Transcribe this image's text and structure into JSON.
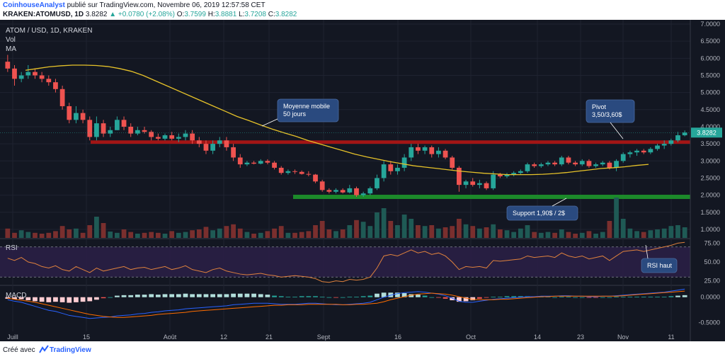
{
  "header": {
    "author": "CoinhouseAnalyst",
    "published": "publié sur TradingView.com, Novembre 06, 2019 12:57:58 CET",
    "symbol": "KRAKEN:ATOMUSD, 1D",
    "last": "3.8282",
    "change": "▲ +0.0780 (+2.08%)",
    "o_label": "O:",
    "o_val": "3.7599",
    "h_label": "H:",
    "h_val": "3.8881",
    "l_label": "L:",
    "l_val": "3.7208",
    "c_label": "C:",
    "c_val": "3.8282"
  },
  "legend": {
    "title": "ATOM / USD, 1D, KRAKEN",
    "vol": "Vol",
    "ma": "MA"
  },
  "callouts": {
    "ma": [
      "Moyenne mobile",
      "50 jours"
    ],
    "pivot": [
      "Pivot",
      "3,50/3,60$"
    ],
    "support": "Support 1,90$ / 2$",
    "rsi": "RSI haut"
  },
  "panes": {
    "rsi": "RSI",
    "macd": "MACD"
  },
  "price_tag": "3.8282",
  "footer": {
    "created": "Créé avec",
    "brand": "TradingView"
  },
  "colors": {
    "up": "#26a69a",
    "down": "#ef5350",
    "ma": "#e6c229",
    "bg": "#131722",
    "resistance": "#a31515",
    "support": "#1c8a2a",
    "rsi_line": "#e0823d",
    "callout": "#2a4a7f"
  },
  "chart_data": {
    "type": "candlestick",
    "x_ticks": [
      "Juill",
      "15",
      "Août",
      "12",
      "21",
      "Sept",
      "16",
      "Oct",
      "14",
      "23",
      "Nov",
      "11"
    ],
    "price_ticks": [
      "7.0000",
      "6.5000",
      "6.0000",
      "5.5000",
      "5.0000",
      "4.5000",
      "4.0000",
      "3.5000",
      "3.0000",
      "2.5000",
      "2.0000",
      "1.5000",
      "1.0000"
    ],
    "rsi_ticks": [
      "75.00",
      "50.00",
      "25.00"
    ],
    "macd_ticks": [
      "0.0000",
      "-0.5000"
    ],
    "price_ylim": [
      0.75,
      7.0
    ],
    "rsi_ylim": [
      20,
      80
    ],
    "macd_ylim": [
      -0.62,
      0.22
    ],
    "resistance_zone": [
      3.5,
      3.6
    ],
    "support_level": 1.95,
    "rsi_levels": [
      70,
      30
    ],
    "candles": [
      [
        5.9,
        6.1,
        5.6,
        5.7
      ],
      [
        5.7,
        5.8,
        5.2,
        5.4
      ],
      [
        5.4,
        5.6,
        5.3,
        5.5
      ],
      [
        5.5,
        5.8,
        5.4,
        5.6
      ],
      [
        5.6,
        5.7,
        5.4,
        5.5
      ],
      [
        5.5,
        5.6,
        5.3,
        5.4
      ],
      [
        5.4,
        5.5,
        5.2,
        5.3
      ],
      [
        5.3,
        5.4,
        5.0,
        5.1
      ],
      [
        5.1,
        5.2,
        4.5,
        4.6
      ],
      [
        4.6,
        4.7,
        4.1,
        4.2
      ],
      [
        4.2,
        4.6,
        4.1,
        4.4
      ],
      [
        4.4,
        4.5,
        4.1,
        4.2
      ],
      [
        4.2,
        4.3,
        3.6,
        3.7
      ],
      [
        3.7,
        4.3,
        3.6,
        4.1
      ],
      [
        4.1,
        4.2,
        3.7,
        3.8
      ],
      [
        3.8,
        4.0,
        3.7,
        3.9
      ],
      [
        3.9,
        4.3,
        3.9,
        4.2
      ],
      [
        4.2,
        4.3,
        3.9,
        4.0
      ],
      [
        4.0,
        4.1,
        3.7,
        3.8
      ],
      [
        3.8,
        4.0,
        3.75,
        3.9
      ],
      [
        3.9,
        4.0,
        3.8,
        3.85
      ],
      [
        3.85,
        3.9,
        3.6,
        3.7
      ],
      [
        3.7,
        3.8,
        3.6,
        3.65
      ],
      [
        3.65,
        3.8,
        3.6,
        3.75
      ],
      [
        3.75,
        3.85,
        3.6,
        3.65
      ],
      [
        3.65,
        3.8,
        3.55,
        3.7
      ],
      [
        3.7,
        3.9,
        3.6,
        3.8
      ],
      [
        3.8,
        3.9,
        3.5,
        3.6
      ],
      [
        3.6,
        3.7,
        3.4,
        3.5
      ],
      [
        3.5,
        3.6,
        3.2,
        3.3
      ],
      [
        3.3,
        3.6,
        3.2,
        3.5
      ],
      [
        3.5,
        3.7,
        3.4,
        3.6
      ],
      [
        3.6,
        3.7,
        3.3,
        3.4
      ],
      [
        3.4,
        3.5,
        3.0,
        3.1
      ],
      [
        3.1,
        3.2,
        2.8,
        2.9
      ],
      [
        2.9,
        3.0,
        2.85,
        2.95
      ],
      [
        2.95,
        3.0,
        2.9,
        2.92
      ],
      [
        2.92,
        3.05,
        2.9,
        3.0
      ],
      [
        3.0,
        3.05,
        2.9,
        2.95
      ],
      [
        2.95,
        3.0,
        2.75,
        2.8
      ],
      [
        2.8,
        2.85,
        2.6,
        2.65
      ],
      [
        2.65,
        2.75,
        2.6,
        2.7
      ],
      [
        2.7,
        2.75,
        2.62,
        2.68
      ],
      [
        2.68,
        2.72,
        2.6,
        2.62
      ],
      [
        2.62,
        2.7,
        2.55,
        2.6
      ],
      [
        2.6,
        2.62,
        2.35,
        2.4
      ],
      [
        2.4,
        2.45,
        2.1,
        2.15
      ],
      [
        2.15,
        2.2,
        2.05,
        2.1
      ],
      [
        2.1,
        2.2,
        2.05,
        2.15
      ],
      [
        2.15,
        2.2,
        2.05,
        2.08
      ],
      [
        2.08,
        2.3,
        2.05,
        2.2
      ],
      [
        2.2,
        2.25,
        1.95,
        2.0
      ],
      [
        2.0,
        2.1,
        1.95,
        2.05
      ],
      [
        2.05,
        2.25,
        2.0,
        2.2
      ],
      [
        2.2,
        2.6,
        2.15,
        2.5
      ],
      [
        2.5,
        3.0,
        2.4,
        2.9
      ],
      [
        2.9,
        3.0,
        2.6,
        2.7
      ],
      [
        2.7,
        2.9,
        2.6,
        2.8
      ],
      [
        2.8,
        3.2,
        2.7,
        3.1
      ],
      [
        3.1,
        3.5,
        3.0,
        3.4
      ],
      [
        3.4,
        3.5,
        3.2,
        3.3
      ],
      [
        3.3,
        3.45,
        3.2,
        3.4
      ],
      [
        3.4,
        3.45,
        3.1,
        3.2
      ],
      [
        3.2,
        3.4,
        3.1,
        3.3
      ],
      [
        3.3,
        3.35,
        3.05,
        3.1
      ],
      [
        3.1,
        3.15,
        2.75,
        2.8
      ],
      [
        2.8,
        2.85,
        2.1,
        2.3
      ],
      [
        2.3,
        2.45,
        2.2,
        2.4
      ],
      [
        2.4,
        2.5,
        2.25,
        2.3
      ],
      [
        2.3,
        2.45,
        2.2,
        2.35
      ],
      [
        2.35,
        2.4,
        2.15,
        2.2
      ],
      [
        2.2,
        2.7,
        2.15,
        2.6
      ],
      [
        2.6,
        2.65,
        2.5,
        2.55
      ],
      [
        2.55,
        2.65,
        2.5,
        2.6
      ],
      [
        2.6,
        2.7,
        2.55,
        2.65
      ],
      [
        2.65,
        2.75,
        2.6,
        2.7
      ],
      [
        2.7,
        2.95,
        2.65,
        2.9
      ],
      [
        2.9,
        2.95,
        2.8,
        2.85
      ],
      [
        2.85,
        2.95,
        2.8,
        2.9
      ],
      [
        2.9,
        3.0,
        2.85,
        2.95
      ],
      [
        2.95,
        3.0,
        2.85,
        2.9
      ],
      [
        2.9,
        3.15,
        2.85,
        3.1
      ],
      [
        3.1,
        3.15,
        2.9,
        2.95
      ],
      [
        2.95,
        3.0,
        2.85,
        2.9
      ],
      [
        2.9,
        3.05,
        2.85,
        3.0
      ],
      [
        3.0,
        3.05,
        2.8,
        2.85
      ],
      [
        2.85,
        2.95,
        2.8,
        2.9
      ],
      [
        2.9,
        3.0,
        2.85,
        2.95
      ],
      [
        2.95,
        3.0,
        2.75,
        2.8
      ],
      [
        2.8,
        3.05,
        2.7,
        3.0
      ],
      [
        3.0,
        3.25,
        2.95,
        3.2
      ],
      [
        3.2,
        3.3,
        3.1,
        3.25
      ],
      [
        3.25,
        3.35,
        3.15,
        3.3
      ],
      [
        3.3,
        3.35,
        3.2,
        3.25
      ],
      [
        3.25,
        3.4,
        3.2,
        3.35
      ],
      [
        3.35,
        3.5,
        3.3,
        3.45
      ],
      [
        3.45,
        3.6,
        3.35,
        3.5
      ],
      [
        3.5,
        3.65,
        3.45,
        3.6
      ],
      [
        3.6,
        3.85,
        3.55,
        3.75
      ],
      [
        3.75,
        3.89,
        3.72,
        3.83
      ]
    ],
    "ma50": [
      5.65,
      5.7,
      5.75,
      5.78,
      5.8,
      5.8,
      5.79,
      5.76,
      5.7,
      5.62,
      5.5,
      5.35,
      5.2,
      5.05,
      4.9,
      4.75,
      4.6,
      4.45,
      4.3,
      4.18,
      4.05,
      3.93,
      3.82,
      3.72,
      3.6,
      3.5,
      3.4,
      3.3,
      3.2,
      3.12,
      3.05,
      2.98,
      2.92,
      2.86,
      2.82,
      2.78,
      2.74,
      2.7,
      2.67,
      2.64,
      2.62,
      2.6,
      2.6,
      2.6,
      2.61,
      2.63,
      2.66,
      2.7,
      2.74,
      2.78,
      2.8,
      2.83,
      2.87,
      2.9
    ],
    "volume": [
      0.22,
      0.12,
      0.18,
      0.14,
      0.12,
      0.1,
      0.12,
      0.16,
      0.28,
      0.2,
      0.22,
      0.12,
      0.3,
      0.5,
      0.35,
      0.15,
      0.12,
      0.2,
      0.14,
      0.1,
      0.12,
      0.14,
      0.12,
      0.1,
      0.16,
      0.12,
      0.14,
      0.18,
      0.2,
      0.26,
      0.18,
      0.22,
      0.28,
      0.32,
      0.22,
      0.14,
      0.1,
      0.12,
      0.16,
      0.22,
      0.28,
      0.12,
      0.12,
      0.14,
      0.16,
      0.3,
      0.4,
      0.2,
      0.16,
      0.2,
      0.3,
      0.42,
      0.38,
      0.28,
      0.6,
      0.7,
      0.4,
      0.3,
      0.55,
      0.45,
      0.3,
      0.28,
      0.3,
      0.22,
      0.25,
      0.28,
      0.45,
      0.32,
      0.28,
      0.22,
      0.25,
      0.32,
      0.2,
      0.18,
      0.14,
      0.22,
      0.3,
      0.14,
      0.12,
      0.14,
      0.12,
      0.2,
      0.14,
      0.1,
      0.12,
      0.16,
      0.1,
      0.14,
      0.4,
      0.95,
      0.45,
      0.22,
      0.16,
      0.14,
      0.18,
      0.2,
      0.22,
      0.28,
      0.3,
      0.25
    ],
    "rsi": [
      55,
      52,
      56,
      50,
      48,
      44,
      42,
      45,
      40,
      38,
      44,
      40,
      36,
      42,
      38,
      40,
      42,
      44,
      40,
      42,
      43,
      40,
      42,
      44,
      40,
      42,
      45,
      40,
      38,
      36,
      40,
      42,
      38,
      36,
      34,
      33,
      34,
      35,
      33,
      32,
      30,
      31,
      32,
      31,
      30,
      28,
      24,
      23,
      25,
      24,
      27,
      26,
      27,
      30,
      42,
      58,
      60,
      58,
      62,
      66,
      62,
      64,
      60,
      62,
      58,
      50,
      40,
      44,
      43,
      44,
      42,
      52,
      51,
      52,
      53,
      54,
      58,
      56,
      57,
      58,
      56,
      62,
      58,
      56,
      58,
      54,
      56,
      58,
      52,
      58,
      64,
      65,
      66,
      64,
      66,
      68,
      70,
      72,
      75,
      76
    ],
    "macd": [
      -0.05,
      -0.08,
      -0.1,
      -0.14,
      -0.18,
      -0.22,
      -0.26,
      -0.28,
      -0.32,
      -0.36,
      -0.38,
      -0.4,
      -0.42,
      -0.41,
      -0.4,
      -0.39,
      -0.37,
      -0.36,
      -0.35,
      -0.33,
      -0.32,
      -0.3,
      -0.29,
      -0.27,
      -0.26,
      -0.25,
      -0.23,
      -0.22,
      -0.21,
      -0.2,
      -0.19,
      -0.18,
      -0.17,
      -0.15,
      -0.14,
      -0.13,
      -0.12,
      -0.12,
      -0.12,
      -0.13,
      -0.14,
      -0.14,
      -0.14,
      -0.13,
      -0.12,
      -0.12,
      -0.13,
      -0.14,
      -0.15,
      -0.15,
      -0.14,
      -0.13,
      -0.12,
      -0.1,
      -0.05,
      0.0,
      0.04,
      0.07,
      0.09,
      0.1,
      0.11,
      0.1,
      0.08,
      0.06,
      0.03,
      -0.02,
      -0.08,
      -0.1,
      -0.1,
      -0.08,
      -0.06,
      -0.04,
      -0.03,
      -0.02,
      -0.01,
      0.0,
      0.01,
      0.01,
      0.02,
      0.02,
      0.02,
      0.03,
      0.03,
      0.02,
      0.02,
      0.01,
      0.01,
      0.02,
      0.02,
      0.03,
      0.04,
      0.05,
      0.06,
      0.07,
      0.08,
      0.09,
      0.1,
      0.12,
      0.14,
      0.16
    ],
    "signal": [
      -0.02,
      -0.04,
      -0.06,
      -0.08,
      -0.1,
      -0.13,
      -0.16,
      -0.19,
      -0.22,
      -0.25,
      -0.28,
      -0.31,
      -0.34,
      -0.36,
      -0.38,
      -0.39,
      -0.4,
      -0.4,
      -0.39,
      -0.38,
      -0.37,
      -0.36,
      -0.34,
      -0.33,
      -0.32,
      -0.31,
      -0.3,
      -0.28,
      -0.27,
      -0.26,
      -0.25,
      -0.24,
      -0.23,
      -0.22,
      -0.21,
      -0.2,
      -0.19,
      -0.18,
      -0.17,
      -0.16,
      -0.16,
      -0.15,
      -0.15,
      -0.15,
      -0.14,
      -0.14,
      -0.14,
      -0.14,
      -0.14,
      -0.15,
      -0.15,
      -0.14,
      -0.14,
      -0.13,
      -0.12,
      -0.09,
      -0.05,
      -0.02,
      0.01,
      0.04,
      0.06,
      0.07,
      0.08,
      0.07,
      0.06,
      0.04,
      0.01,
      -0.02,
      -0.04,
      -0.05,
      -0.05,
      -0.05,
      -0.04,
      -0.04,
      -0.03,
      -0.02,
      -0.01,
      0.0,
      0.01,
      0.01,
      0.02,
      0.02,
      0.02,
      0.02,
      0.02,
      0.02,
      0.02,
      0.02,
      0.02,
      0.02,
      0.03,
      0.04,
      0.05,
      0.06,
      0.07,
      0.08,
      0.09,
      0.1,
      0.11,
      0.12
    ]
  }
}
